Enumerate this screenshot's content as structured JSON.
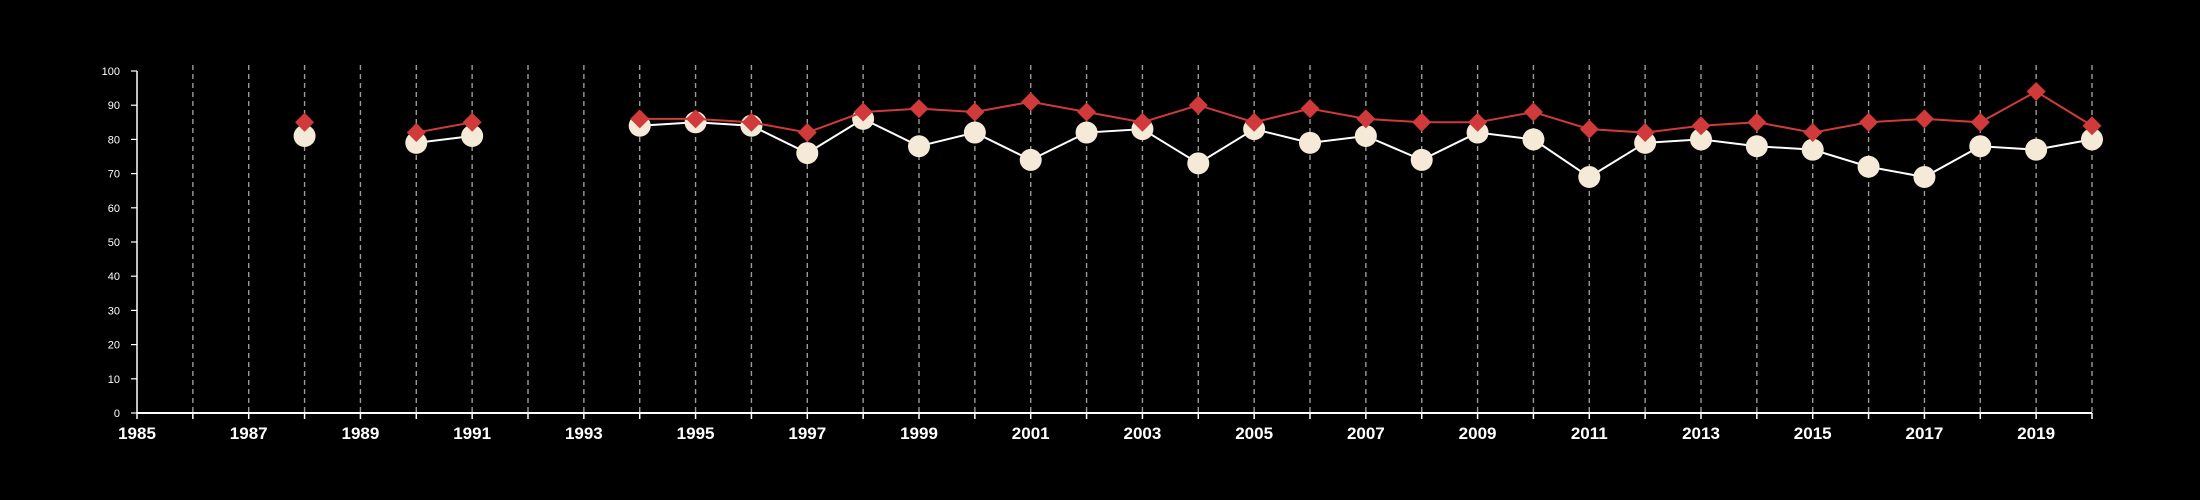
{
  "chart_data": {
    "type": "line",
    "title": "",
    "xlabel": "",
    "ylabel": "",
    "xlim": [
      1985,
      2020
    ],
    "ylim": [
      0,
      100
    ],
    "x_ticks": [
      1985,
      1987,
      1989,
      1991,
      1993,
      1995,
      1997,
      1999,
      2001,
      2003,
      2005,
      2007,
      2009,
      2011,
      2013,
      2015,
      2017,
      2019
    ],
    "y_ticks": [
      0,
      10,
      20,
      30,
      40,
      50,
      60,
      70,
      80,
      90,
      100
    ],
    "grid": "vertical dashed lines at every year",
    "legend": "none",
    "series": [
      {
        "color": "#d03a3a",
        "marker": "diamond",
        "points": [
          [
            1988,
            85
          ],
          [
            1990,
            82
          ],
          [
            1991,
            85
          ],
          [
            1994,
            86
          ],
          [
            1995,
            86
          ],
          [
            1996,
            85
          ],
          [
            1997,
            82
          ],
          [
            1998,
            88
          ],
          [
            1999,
            89
          ],
          [
            2000,
            88
          ],
          [
            2001,
            91
          ],
          [
            2002,
            88
          ],
          [
            2003,
            85
          ],
          [
            2004,
            90
          ],
          [
            2005,
            85
          ],
          [
            2006,
            89
          ],
          [
            2007,
            86
          ],
          [
            2008,
            85
          ],
          [
            2009,
            85
          ],
          [
            2010,
            88
          ],
          [
            2011,
            83
          ],
          [
            2012,
            82
          ],
          [
            2013,
            84
          ],
          [
            2014,
            85
          ],
          [
            2015,
            82
          ],
          [
            2016,
            85
          ],
          [
            2017,
            86
          ],
          [
            2018,
            85
          ],
          [
            2019,
            94
          ],
          [
            2020,
            84
          ]
        ]
      },
      {
        "color": "#f5ead8",
        "marker": "circle",
        "points": [
          [
            1988,
            81
          ],
          [
            1990,
            79
          ],
          [
            1991,
            81
          ],
          [
            1994,
            84
          ],
          [
            1995,
            85
          ],
          [
            1996,
            84
          ],
          [
            1997,
            76
          ],
          [
            1998,
            86
          ],
          [
            1999,
            78
          ],
          [
            2000,
            82
          ],
          [
            2001,
            74
          ],
          [
            2002,
            82
          ],
          [
            2003,
            83
          ],
          [
            2004,
            73
          ],
          [
            2005,
            83
          ],
          [
            2006,
            79
          ],
          [
            2007,
            81
          ],
          [
            2008,
            74
          ],
          [
            2009,
            82
          ],
          [
            2010,
            80
          ],
          [
            2011,
            69
          ],
          [
            2012,
            79
          ],
          [
            2013,
            80
          ],
          [
            2014,
            78
          ],
          [
            2015,
            77
          ],
          [
            2016,
            72
          ],
          [
            2017,
            69
          ],
          [
            2018,
            78
          ],
          [
            2019,
            77
          ],
          [
            2020,
            80
          ]
        ]
      }
    ]
  },
  "colors": {
    "background": "#000000",
    "axis": "#ffffff",
    "grid": "#9a9a9a",
    "line_light": "#ffffff"
  }
}
